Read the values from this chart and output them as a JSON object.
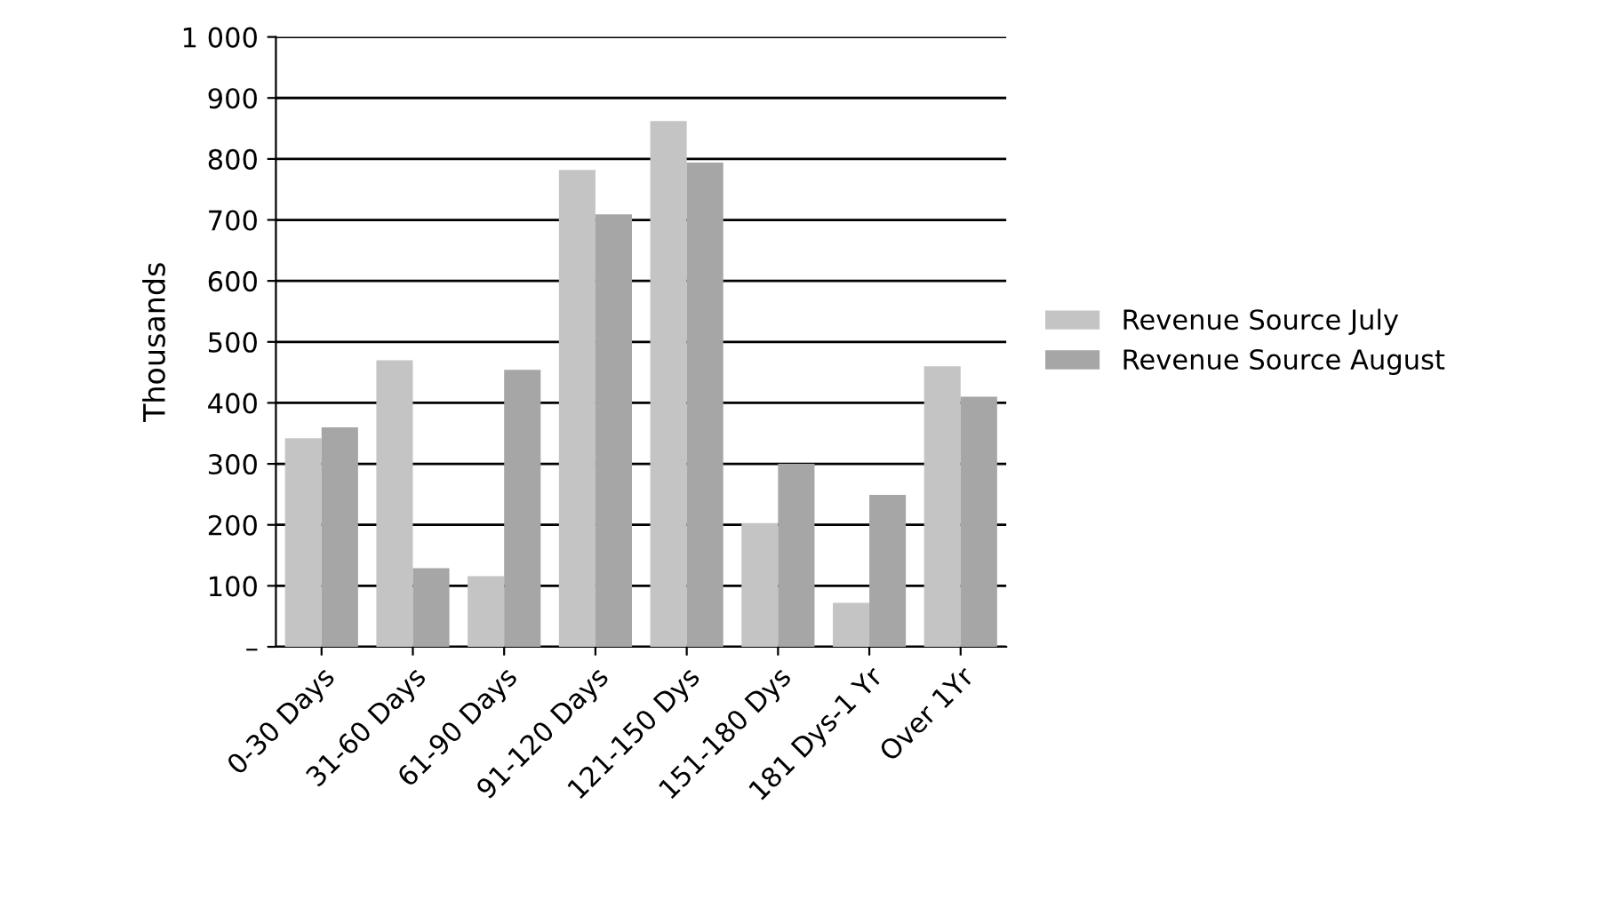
{
  "chart_data": {
    "type": "bar",
    "ylabel": "Thousands",
    "categories": [
      "0-30 Days",
      "31-60 Days",
      "61-90 Days",
      "91-120 Days",
      "121-150 Dys",
      "151-180 Dys",
      "181 Dys-1 Yr",
      "Over 1Yr"
    ],
    "series": [
      {
        "name": "Revenue Source July",
        "color": "#c4c4c4",
        "values": [
          342,
          470,
          116,
          782,
          862,
          203,
          72,
          460
        ]
      },
      {
        "name": "Revenue Source August",
        "color": "#a6a6a6",
        "values": [
          360,
          129,
          454,
          709,
          794,
          300,
          249,
          410
        ]
      }
    ],
    "ylim": [
      0,
      1000
    ],
    "yticks": [
      {
        "value": 0,
        "label": "–"
      },
      100,
      200,
      300,
      400,
      500,
      600,
      700,
      800,
      900,
      {
        "value": 1000,
        "label": "1 000"
      }
    ],
    "grid": "y",
    "legend": "right"
  }
}
